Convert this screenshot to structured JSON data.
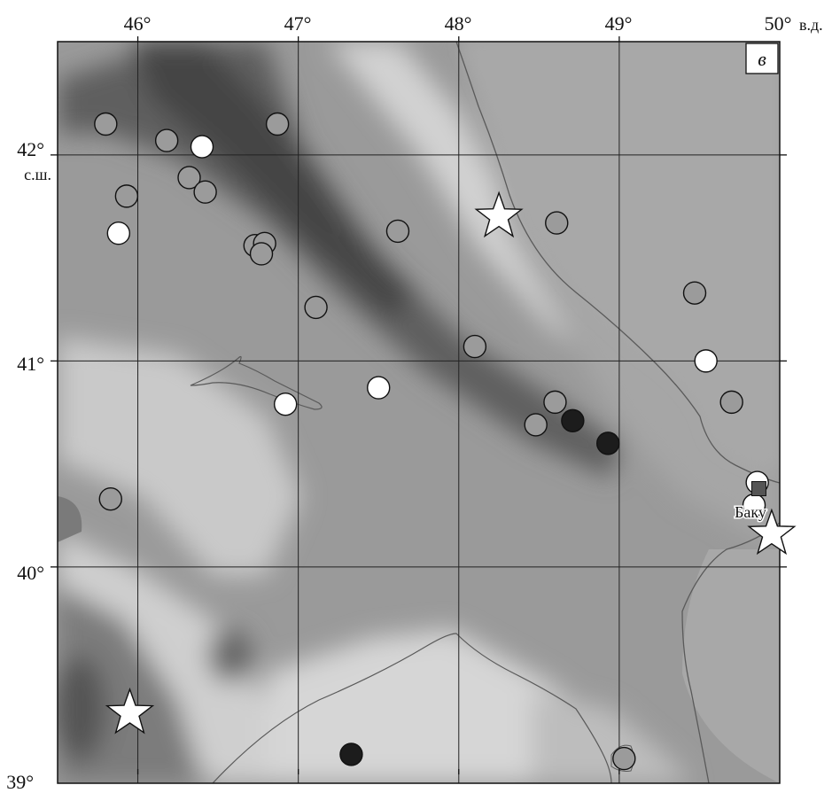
{
  "panel_label": "в",
  "city_label": "Баку",
  "axis": {
    "x_ticks": [
      "46°",
      "47°",
      "48°",
      "49°",
      "50°"
    ],
    "x_unit": "в.д.",
    "y_ticks": [
      "42°",
      "41°",
      "40°",
      "39°"
    ],
    "y_unit": "с.ш.",
    "lon_range": [
      45.5,
      50.0
    ],
    "lat_range": [
      38.95,
      42.55
    ]
  },
  "colors": {
    "gray_marker": "#9b9b9b",
    "white_marker": "#ffffff",
    "black_marker": "#1c1c1c",
    "city_square": "#555555"
  },
  "markers": {
    "gray": [
      [
        45.8,
        42.15
      ],
      [
        46.18,
        42.07
      ],
      [
        46.87,
        42.15
      ],
      [
        46.32,
        41.89
      ],
      [
        46.42,
        41.82
      ],
      [
        45.93,
        41.8
      ],
      [
        46.73,
        41.56
      ],
      [
        46.79,
        41.57
      ],
      [
        46.77,
        41.52
      ],
      [
        47.62,
        41.63
      ],
      [
        48.61,
        41.67
      ],
      [
        47.11,
        41.26
      ],
      [
        48.1,
        41.07
      ],
      [
        49.47,
        41.33
      ],
      [
        49.7,
        40.8
      ],
      [
        48.6,
        40.8
      ],
      [
        48.48,
        40.69
      ],
      [
        45.83,
        40.33
      ],
      [
        49.03,
        39.07
      ]
    ],
    "white": [
      [
        46.4,
        42.04
      ],
      [
        45.88,
        41.62
      ],
      [
        47.5,
        40.87
      ],
      [
        46.92,
        40.79
      ],
      [
        49.54,
        41.0
      ],
      [
        49.86,
        40.41
      ],
      [
        49.84,
        40.3
      ]
    ],
    "black": [
      [
        48.71,
        40.71
      ],
      [
        48.93,
        40.6
      ],
      [
        47.33,
        39.09
      ]
    ],
    "stars": [
      [
        48.25,
        41.7
      ],
      [
        49.95,
        40.16
      ],
      [
        45.95,
        39.29
      ]
    ],
    "city": [
      49.87,
      40.38
    ]
  }
}
